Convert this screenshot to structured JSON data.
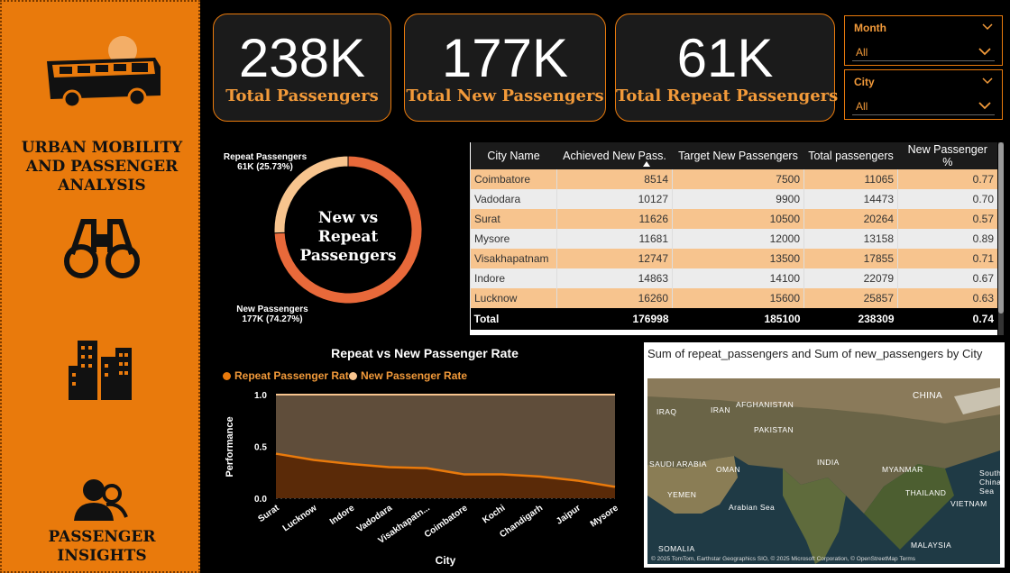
{
  "sidebar": {
    "title": "URBAN MOBILITY AND PASSENGER ANALYSIS",
    "title_lines": [
      "URBAN MOBILITY",
      "AND PASSENGER",
      "ANALYSIS"
    ],
    "footer_lines": [
      "PASSENGER",
      "INSIGHTS"
    ],
    "icons": [
      "bus-icon",
      "binoculars-icon",
      "buildings-icon",
      "users-icon"
    ]
  },
  "kpis": [
    {
      "value": "238K",
      "label": "Total Passengers"
    },
    {
      "value": "177K",
      "label": "Total New Passengers"
    },
    {
      "value": "61K",
      "label": "Total Repeat Passengers"
    }
  ],
  "slicers": [
    {
      "title": "Month",
      "value": "All"
    },
    {
      "title": "City",
      "value": "All"
    }
  ],
  "donut": {
    "center_lines": [
      "New vs",
      "Repeat",
      "Passengers"
    ],
    "slices": [
      {
        "name": "Repeat Passengers",
        "value_label": "61K (25.73%)",
        "percent": 25.73,
        "color": "#F7C48E"
      },
      {
        "name": "New Passengers",
        "value_label": "177K (74.27%)",
        "percent": 74.27,
        "color": "#E8693A"
      }
    ]
  },
  "table": {
    "columns": [
      "City Name",
      "Achieved New Pass.",
      "Target New Passengers",
      "Total passengers",
      "New Passenger %"
    ],
    "rows": [
      [
        "Coimbatore",
        "8514",
        "7500",
        "11065",
        "0.77"
      ],
      [
        "Vadodara",
        "10127",
        "9900",
        "14473",
        "0.70"
      ],
      [
        "Surat",
        "11626",
        "10500",
        "20264",
        "0.57"
      ],
      [
        "Mysore",
        "11681",
        "12000",
        "13158",
        "0.89"
      ],
      [
        "Visakhapatnam",
        "12747",
        "13500",
        "17855",
        "0.71"
      ],
      [
        "Indore",
        "14863",
        "14100",
        "22079",
        "0.67"
      ],
      [
        "Lucknow",
        "16260",
        "15600",
        "25857",
        "0.63"
      ]
    ],
    "total": [
      "Total",
      "176998",
      "185100",
      "238309",
      "0.74"
    ]
  },
  "chart_data": {
    "type": "area",
    "title": "Repeat vs New Passenger Rate",
    "xlabel": "City",
    "ylabel": "Performance",
    "categories": [
      "Surat",
      "Lucknow",
      "Indore",
      "Vadodara",
      "Visakhapatn...",
      "Coimbatore",
      "Kochi",
      "Chandigarh",
      "Jaipur",
      "Mysore"
    ],
    "ylim": [
      0,
      1.0
    ],
    "yticks": [
      "0.0",
      "0.5",
      "1.0"
    ],
    "legend_position": "top-left",
    "series": [
      {
        "name": "Repeat Passenger Rate",
        "color": "#E97A0C",
        "values": [
          0.43,
          0.37,
          0.33,
          0.3,
          0.29,
          0.23,
          0.23,
          0.21,
          0.17,
          0.11
        ]
      },
      {
        "name": "New Passenger Rate",
        "color": "#F7C48E",
        "values": [
          1.0,
          1.0,
          1.0,
          1.0,
          1.0,
          1.0,
          1.0,
          1.0,
          1.0,
          1.0
        ]
      }
    ]
  },
  "map": {
    "title": "Sum of repeat_passengers and Sum of new_passengers by City",
    "labels": [
      "CHINA",
      "IRAQ",
      "IRAN",
      "AFGHANISTAN",
      "PAKISTAN",
      "SAUDI ARABIA",
      "OMAN",
      "INDIA",
      "MYANMAR",
      "YEMEN",
      "THAILAND",
      "Arabian Sea",
      "VIETNAM",
      "South China Sea",
      "SOMALIA",
      "MALAYSIA"
    ],
    "attribution": "© 2025 TomTom, Earthstar Geographics SIO, © 2025 Microsoft Corporation, © OpenStreetMap  Terms"
  }
}
